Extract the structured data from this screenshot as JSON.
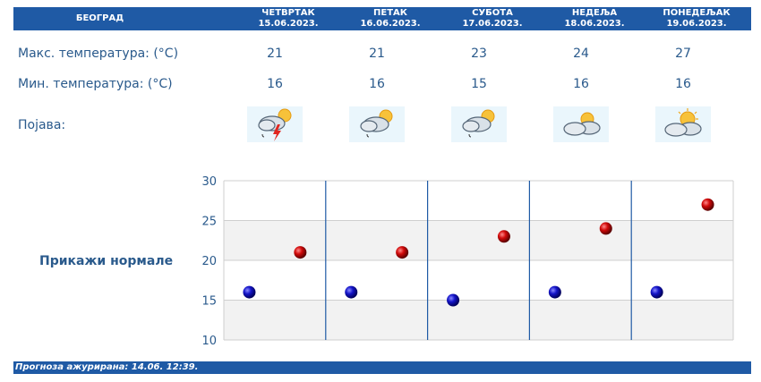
{
  "city": "БЕОГРАД",
  "days": [
    {
      "name": "ЧЕТВРТАК",
      "date": "15.06.2023.",
      "max": "21",
      "min": "16",
      "icon": "storm-cloud-sun-icon"
    },
    {
      "name": "ПЕТАК",
      "date": "16.06.2023.",
      "max": "21",
      "min": "16",
      "icon": "cloud-sun-rain-icon"
    },
    {
      "name": "СУБОТА",
      "date": "17.06.2023.",
      "max": "23",
      "min": "15",
      "icon": "cloud-sun-rain-icon"
    },
    {
      "name": "НЕДЕЉА",
      "date": "18.06.2023.",
      "max": "24",
      "min": "16",
      "icon": "cloud-sun-icon"
    },
    {
      "name": "ПОНЕДЕЉАК",
      "date": "19.06.2023.",
      "max": "27",
      "min": "16",
      "icon": "cloud-sun-icon"
    }
  ],
  "labels": {
    "max": "Макс. температура: (°C)",
    "min": "Мин. температура: (°C)",
    "phenomenon": "Појава:",
    "normals": "Прикажи нормале"
  },
  "footer": "Прогноза ажурирана:  14.06. 12:39.",
  "colors": {
    "header": "#1f5aa5",
    "max_dot": "#cc0000",
    "min_dot": "#1010b0"
  },
  "chart_data": {
    "type": "scatter",
    "categories": [
      "15.06.2023.",
      "16.06.2023.",
      "17.06.2023.",
      "18.06.2023.",
      "19.06.2023."
    ],
    "series": [
      {
        "values": [
          16,
          16,
          15,
          16,
          16
        ]
      },
      {
        "values": [
          21,
          21,
          23,
          24,
          27
        ]
      }
    ],
    "yticks": [
      "10",
      "15",
      "20",
      "25",
      "30"
    ],
    "ylim": [
      10,
      30
    ],
    "grid": true
  }
}
